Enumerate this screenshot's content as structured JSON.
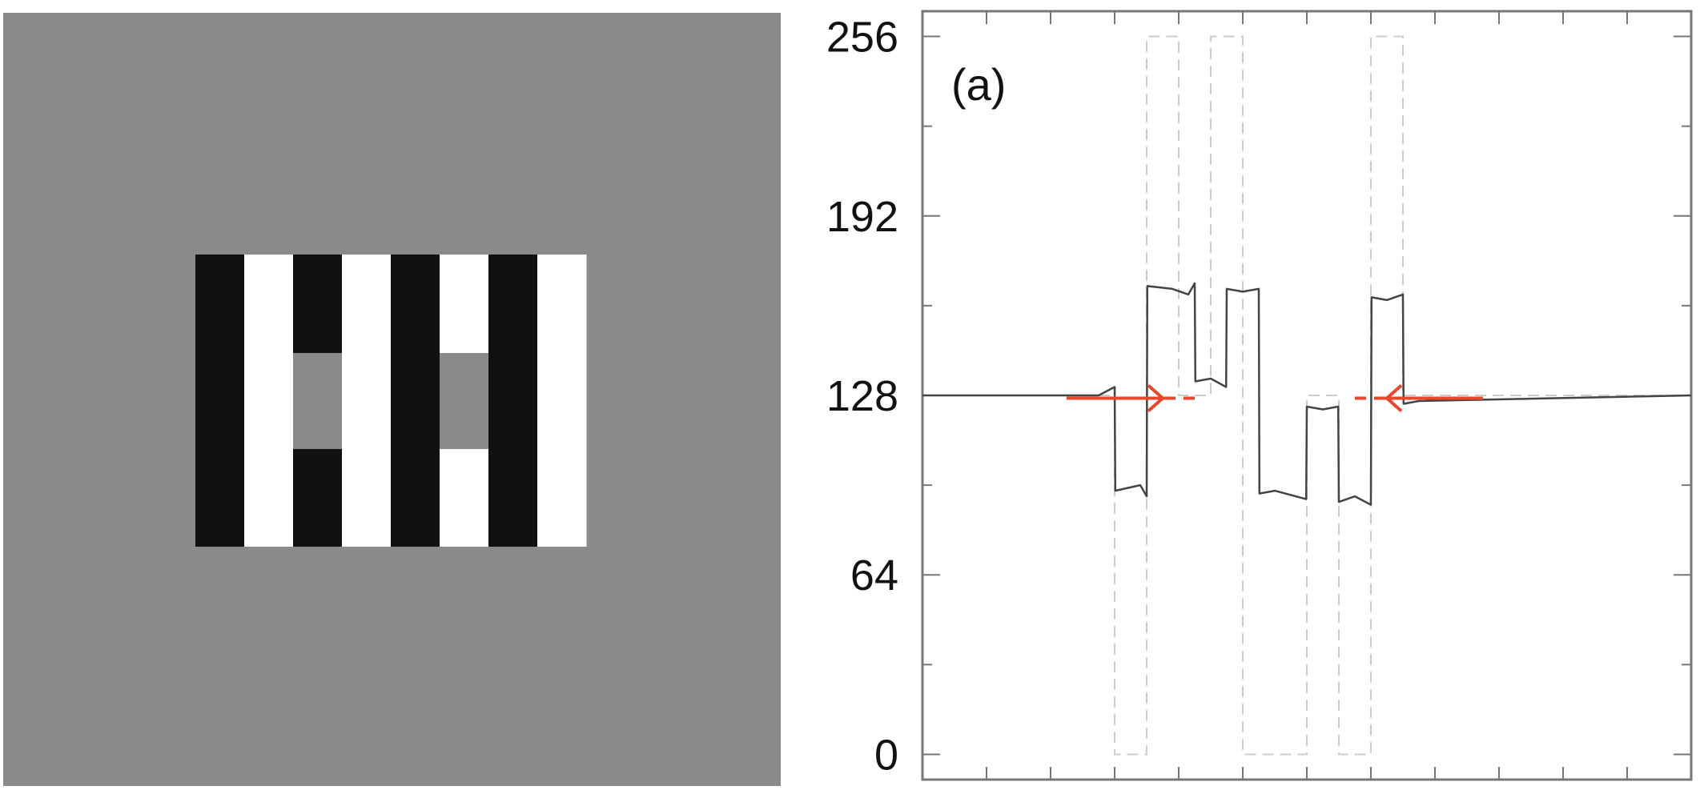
{
  "stimulus": {
    "background_color": "#8a8a8a",
    "dark_color": "#111111",
    "light_color": "#ffffff",
    "gray_color": "#8a8a8a",
    "bars": [
      {
        "color": "dark",
        "gray_patch": false
      },
      {
        "color": "light",
        "gray_patch": false
      },
      {
        "color": "dark",
        "gray_patch": true
      },
      {
        "color": "light",
        "gray_patch": false
      },
      {
        "color": "dark",
        "gray_patch": false
      },
      {
        "color": "light",
        "gray_patch": true
      },
      {
        "color": "dark",
        "gray_patch": false
      },
      {
        "color": "light",
        "gray_patch": false
      }
    ]
  },
  "chart_data": {
    "type": "line",
    "panel_label": "(a)",
    "xlabel": "",
    "ylabel": "",
    "xlim": [
      -9,
      15
    ],
    "ylim": [
      -9,
      265
    ],
    "yticks": [
      0,
      64,
      128,
      192,
      256
    ],
    "ytick_labels": [
      "0",
      "64",
      "128",
      "192",
      "256"
    ],
    "xtick_positions": [
      -9,
      -7,
      -5,
      -3,
      -1,
      1,
      3,
      5,
      7,
      9,
      11,
      13,
      15
    ],
    "grid": false,
    "line_color": "#444444",
    "input_color": "#cccccc",
    "arrow_color": "#e8472a",
    "series": [
      {
        "kind": "response",
        "points": [
          [
            -9,
            128
          ],
          [
            -3.5,
            128
          ],
          [
            -3,
            131
          ],
          [
            -2.98,
            94
          ],
          [
            -2.2,
            96
          ],
          [
            -2,
            92
          ],
          [
            -1.98,
            167
          ],
          [
            -1.2,
            166
          ],
          [
            -0.7,
            164
          ],
          [
            -0.5,
            168
          ],
          [
            -0.48,
            133
          ],
          [
            0,
            134
          ],
          [
            0.48,
            131
          ],
          [
            0.5,
            166
          ],
          [
            1,
            165
          ],
          [
            1.5,
            166
          ],
          [
            1.52,
            93
          ],
          [
            2,
            94
          ],
          [
            2.98,
            91
          ],
          [
            3,
            124
          ],
          [
            3.5,
            123
          ],
          [
            3.98,
            124
          ],
          [
            4,
            90
          ],
          [
            4.5,
            92
          ],
          [
            5,
            89
          ],
          [
            5.02,
            163
          ],
          [
            5.5,
            162
          ],
          [
            6,
            164
          ],
          [
            6.02,
            125
          ],
          [
            6.5,
            126
          ],
          [
            15,
            128
          ]
        ]
      },
      {
        "kind": "input",
        "points": [
          [
            -9,
            128
          ],
          [
            -3,
            128
          ],
          [
            -3,
            0
          ],
          [
            -2,
            0
          ],
          [
            -2,
            256
          ],
          [
            -1,
            256
          ],
          [
            -1,
            128
          ],
          [
            0,
            128
          ],
          [
            0,
            256
          ],
          [
            1,
            256
          ],
          [
            1,
            0
          ],
          [
            3,
            0
          ],
          [
            3,
            128
          ],
          [
            4,
            128
          ],
          [
            4,
            0
          ],
          [
            5,
            0
          ],
          [
            5,
            256
          ],
          [
            6,
            256
          ],
          [
            6,
            128
          ],
          [
            15,
            128
          ]
        ]
      }
    ],
    "arrows": [
      {
        "from_x": -4.5,
        "to_x": -0.5,
        "y": 127,
        "dashed_from_x": -1.5
      },
      {
        "from_x": 8.5,
        "to_x": 4.5,
        "y": 127,
        "dashed_from_x": 5.5
      }
    ]
  }
}
